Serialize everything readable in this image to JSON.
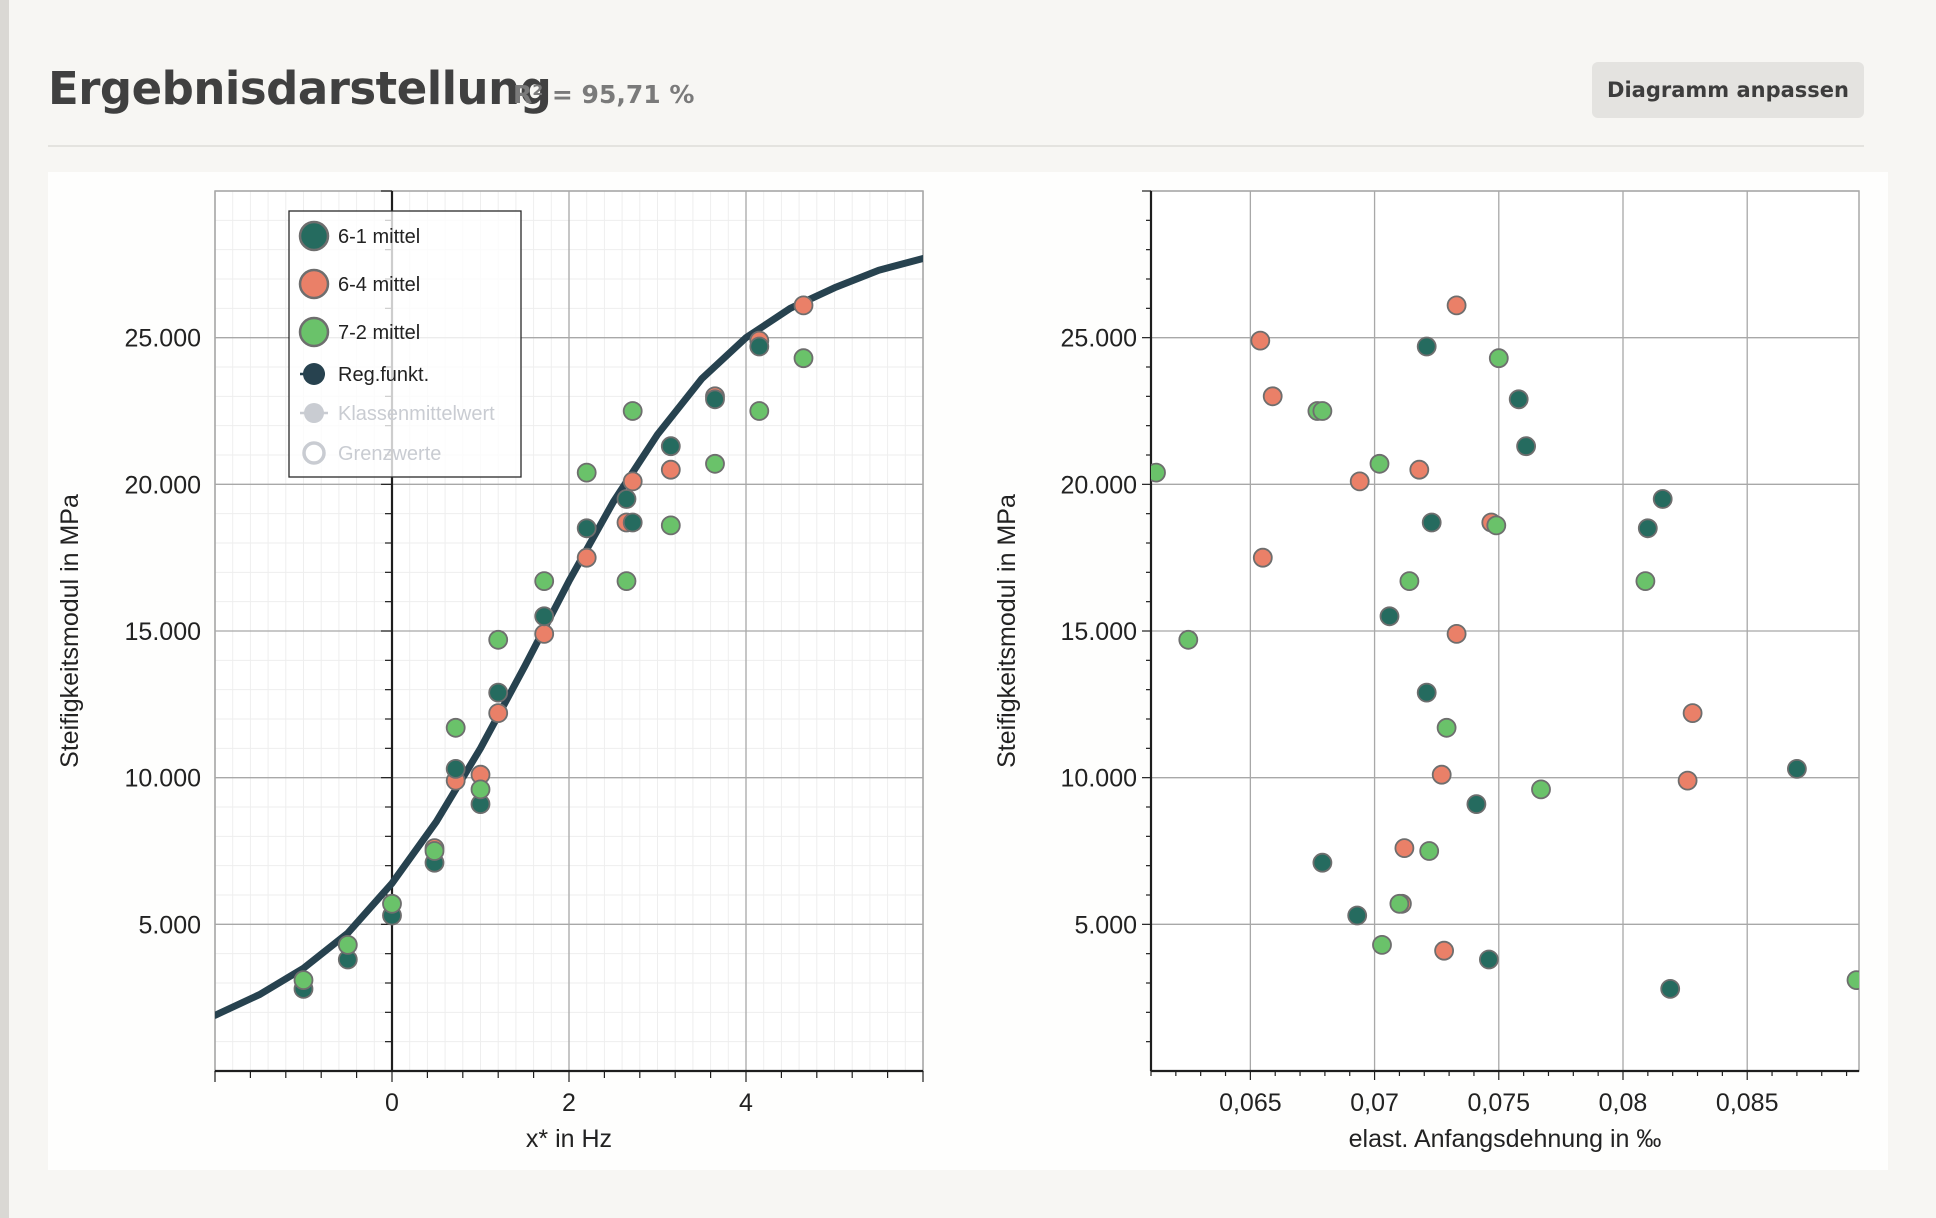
{
  "header": {
    "title": "Ergebnisdarstellung",
    "r_squared": "R² = 95,71 %",
    "button_label": "Diagramm anpassen"
  },
  "colors": {
    "s61": "#256b5f",
    "s64": "#ea8068",
    "s72": "#6ac26a",
    "reg": "#27424f",
    "muted": "#c9ccd2"
  },
  "chart_data": [
    {
      "type": "scatter",
      "xlabel": "x* in Hz",
      "ylabel": "Steifigkeitsmodul in MPa",
      "xlim": [
        -2,
        6
      ],
      "ylim": [
        0,
        30000
      ],
      "x_ticks": [
        {
          "v": 0,
          "label": "0"
        },
        {
          "v": 2,
          "label": "2"
        },
        {
          "v": 4,
          "label": "4"
        }
      ],
      "y_ticks": [
        {
          "v": 5000,
          "label": "5.000"
        },
        {
          "v": 10000,
          "label": "10.000"
        },
        {
          "v": 15000,
          "label": "15.000"
        },
        {
          "v": 20000,
          "label": "20.000"
        },
        {
          "v": 25000,
          "label": "25.000"
        }
      ],
      "legend": {
        "placement": "top-left",
        "entries": [
          {
            "label": "6-1 mittel",
            "kind": "circle",
            "color": "#256b5f"
          },
          {
            "label": "6-4 mittel",
            "kind": "circle",
            "color": "#ea8068"
          },
          {
            "label": "7-2 mittel",
            "kind": "circle",
            "color": "#6ac26a"
          },
          {
            "label": "Reg.funkt.",
            "kind": "line",
            "color": "#27424f"
          },
          {
            "label": "Klassenmittelwert",
            "kind": "muted-filled",
            "color": "#c9ccd2"
          },
          {
            "label": "Grenzwerte",
            "kind": "muted-ring",
            "color": "#c9ccd2"
          }
        ]
      },
      "series": [
        {
          "name": "6-1 mittel",
          "color": "#256b5f",
          "points": [
            [
              -1,
              2800
            ],
            [
              -0.5,
              3800
            ],
            [
              0,
              5300
            ],
            [
              0.48,
              7100
            ],
            [
              0.72,
              10300
            ],
            [
              1,
              9100
            ],
            [
              1.2,
              12900
            ],
            [
              1.72,
              15500
            ],
            [
              2.2,
              18500
            ],
            [
              2.65,
              19500
            ],
            [
              2.72,
              18700
            ],
            [
              3.15,
              21300
            ],
            [
              3.65,
              22900
            ],
            [
              4.15,
              24700
            ]
          ]
        },
        {
          "name": "6-4 mittel",
          "color": "#ea8068",
          "points": [
            [
              0.48,
              7600
            ],
            [
              0.72,
              9900
            ],
            [
              1,
              10100
            ],
            [
              1.2,
              12200
            ],
            [
              1.72,
              14900
            ],
            [
              2.2,
              17500
            ],
            [
              2.65,
              18700
            ],
            [
              2.72,
              20100
            ],
            [
              3.15,
              20500
            ],
            [
              3.65,
              23000
            ],
            [
              4.15,
              24900
            ],
            [
              4.65,
              26100
            ]
          ]
        },
        {
          "name": "7-2 mittel",
          "color": "#6ac26a",
          "points": [
            [
              -1,
              3100
            ],
            [
              -0.5,
              4300
            ],
            [
              0,
              5700
            ],
            [
              0.48,
              7500
            ],
            [
              0.72,
              11700
            ],
            [
              1,
              9600
            ],
            [
              1.2,
              14700
            ],
            [
              1.72,
              16700
            ],
            [
              2.2,
              20400
            ],
            [
              2.65,
              16700
            ],
            [
              2.72,
              22500
            ],
            [
              3.15,
              18600
            ],
            [
              3.65,
              20700
            ],
            [
              4.15,
              22500
            ],
            [
              4.65,
              24300
            ]
          ]
        }
      ],
      "regression": {
        "name": "Reg.funkt.",
        "color": "#27424f",
        "points": [
          [
            -2,
            1900
          ],
          [
            -1.5,
            2600
          ],
          [
            -1,
            3500
          ],
          [
            -0.5,
            4700
          ],
          [
            0,
            6400
          ],
          [
            0.5,
            8500
          ],
          [
            1,
            11000
          ],
          [
            1.5,
            13800
          ],
          [
            2,
            16700
          ],
          [
            2.5,
            19400
          ],
          [
            3,
            21700
          ],
          [
            3.5,
            23600
          ],
          [
            4,
            25000
          ],
          [
            4.5,
            26000
          ],
          [
            5,
            26700
          ],
          [
            5.5,
            27300
          ],
          [
            6,
            27700
          ]
        ]
      }
    },
    {
      "type": "scatter",
      "xlabel": "elast. Anfangsdehnung in ‰",
      "ylabel": "Steifigkeitsmodul in MPa",
      "xlim": [
        0.061,
        0.0895
      ],
      "ylim": [
        0,
        30000
      ],
      "x_ticks": [
        {
          "v": 0.065,
          "label": "0,065"
        },
        {
          "v": 0.07,
          "label": "0,07"
        },
        {
          "v": 0.075,
          "label": "0,075"
        },
        {
          "v": 0.08,
          "label": "0,08"
        },
        {
          "v": 0.085,
          "label": "0,085"
        }
      ],
      "y_ticks": [
        {
          "v": 5000,
          "label": "5.000"
        },
        {
          "v": 10000,
          "label": "10.000"
        },
        {
          "v": 15000,
          "label": "15.000"
        },
        {
          "v": 20000,
          "label": "20.000"
        },
        {
          "v": 25000,
          "label": "25.000"
        }
      ],
      "series": [
        {
          "name": "6-1 mittel",
          "color": "#256b5f",
          "points": [
            [
              0.081,
              18500
            ],
            [
              0.0679,
              7100
            ],
            [
              0.0693,
              5300
            ],
            [
              0.0706,
              15500
            ],
            [
              0.0721,
              24700
            ],
            [
              0.0721,
              12900
            ],
            [
              0.0723,
              18700
            ],
            [
              0.0741,
              9100
            ],
            [
              0.0746,
              3800
            ],
            [
              0.0758,
              22900
            ],
            [
              0.0761,
              21300
            ],
            [
              0.0816,
              19500
            ],
            [
              0.0819,
              2800
            ],
            [
              0.087,
              10300
            ]
          ]
        },
        {
          "name": "6-4 mittel",
          "color": "#ea8068",
          "points": [
            [
              0.0654,
              24900
            ],
            [
              0.0655,
              17500
            ],
            [
              0.0659,
              23000
            ],
            [
              0.0694,
              20100
            ],
            [
              0.0712,
              7600
            ],
            [
              0.0711,
              5700
            ],
            [
              0.0718,
              20500
            ],
            [
              0.0727,
              10100
            ],
            [
              0.0728,
              4100
            ],
            [
              0.0733,
              26100
            ],
            [
              0.0733,
              14900
            ],
            [
              0.0747,
              18700
            ],
            [
              0.0826,
              9900
            ],
            [
              0.0828,
              12200
            ]
          ]
        },
        {
          "name": "7-2 mittel",
          "color": "#6ac26a",
          "points": [
            [
              0.0612,
              20400
            ],
            [
              0.0625,
              14700
            ],
            [
              0.0677,
              22500
            ],
            [
              0.0679,
              22500
            ],
            [
              0.0702,
              20700
            ],
            [
              0.0703,
              4300
            ],
            [
              0.071,
              5700
            ],
            [
              0.0714,
              16700
            ],
            [
              0.0722,
              7500
            ],
            [
              0.0729,
              11700
            ],
            [
              0.0749,
              18600
            ],
            [
              0.075,
              24300
            ],
            [
              0.0767,
              9600
            ],
            [
              0.0809,
              16700
            ],
            [
              0.0894,
              3100
            ]
          ]
        }
      ]
    }
  ]
}
